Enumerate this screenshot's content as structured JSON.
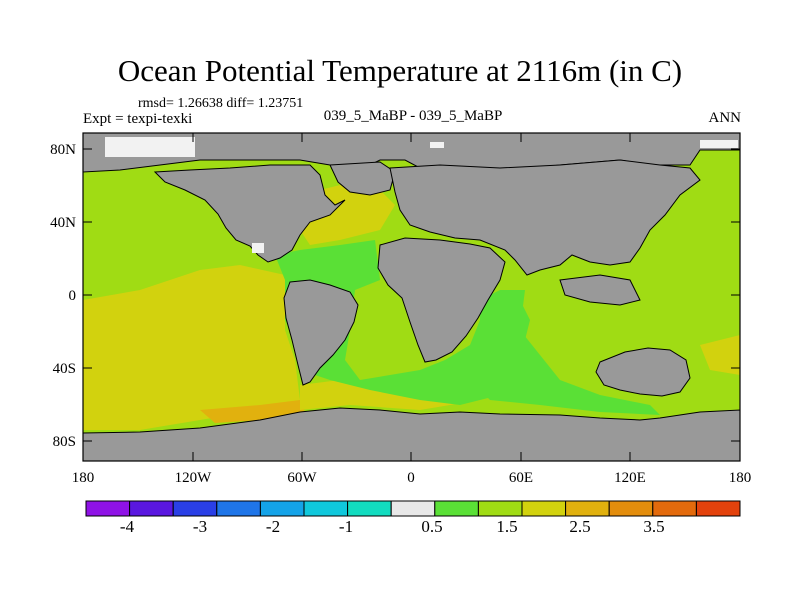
{
  "title": "Ocean Potential Temperature at 2116m (in C)",
  "stats": "rmsd= 1.26638 diff= 1.23751",
  "experiment": "Expt = texpi-texki",
  "subtitle": "039_5_MaBP - 039_5_MaBP",
  "season": "ANN",
  "lat_labels": [
    "80N",
    "40N",
    "0",
    "40S",
    "80S"
  ],
  "lon_labels": [
    "180",
    "120W",
    "60W",
    "0",
    "60E",
    "120E",
    "180"
  ],
  "colorbar": {
    "colors": [
      "#8f12e6",
      "#5a17e0",
      "#2a3fe6",
      "#1f75e8",
      "#14a3e8",
      "#10c8dc",
      "#12dcc0",
      "#e8e8e8",
      "#5ae036",
      "#a0dc14",
      "#d2d20e",
      "#e1b10e",
      "#e38d0c",
      "#e36a0c",
      "#e3420c"
    ],
    "labels": [
      "-4",
      "-3",
      "-2",
      "-1",
      "0.5",
      "1.5",
      "2.5",
      "3.5"
    ]
  },
  "colors": {
    "land": "#999999",
    "missing": "#f2f2f2",
    "ocean_main": "#a0dc14",
    "ocean_warm": "#d2d20e",
    "ocean_cool": "#5ae036",
    "ocean_hot": "#e1b10e"
  }
}
